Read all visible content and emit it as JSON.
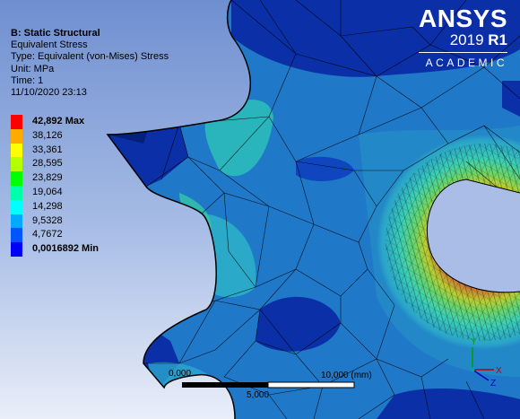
{
  "result": {
    "analysis": "B: Static Structural",
    "result_name": "Equivalent Stress",
    "type": "Type: Equivalent (von-Mises) Stress",
    "unit": "Unit: MPa",
    "time": "Time: 1",
    "timestamp": "11/10/2020 23:13"
  },
  "legend": {
    "entries": [
      {
        "label": "42,892 Max",
        "color": "#ff0000"
      },
      {
        "label": "38,126",
        "color": "#ffaa00"
      },
      {
        "label": "33,361",
        "color": "#ffff00"
      },
      {
        "label": "28,595",
        "color": "#b4ff00"
      },
      {
        "label": "23,829",
        "color": "#00ff00"
      },
      {
        "label": "19,064",
        "color": "#00ffaa"
      },
      {
        "label": "14,298",
        "color": "#00ffff"
      },
      {
        "label": "9,5328",
        "color": "#00aaff"
      },
      {
        "label": "4,7672",
        "color": "#0055ff"
      },
      {
        "label": "0,0016892 Min",
        "color": "#0000ff"
      }
    ]
  },
  "logo": {
    "brand": "ANSYS",
    "version": "2019",
    "release": "R1",
    "edition": "ACADEMIC"
  },
  "scale_bar": {
    "left_label": "0,000",
    "middle_label": "5,000",
    "right_label": "10,000 (mm)"
  },
  "triad": {
    "x_label": "X",
    "y_label": "Y",
    "z_label": "Z"
  },
  "colors": {
    "background_top": "#6f8fd0",
    "background_bottom": "#e9eef8",
    "contour_low": "#0a2fae",
    "contour_mid": "#1f78c8",
    "contour_high": "#e8e000"
  }
}
